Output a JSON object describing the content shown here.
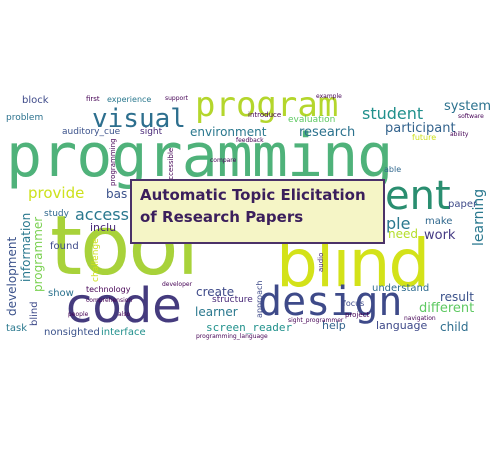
{
  "caption": "Automatic Topic Elicitation of Research Papers",
  "words": {
    "programming": "programming",
    "tool": "tool",
    "blind": "blind",
    "code": "code",
    "design": "design",
    "program": "program",
    "visual": "visual",
    "student": "student",
    "system": "system",
    "participant": "participant",
    "research": "research",
    "environment": "environment",
    "provide": "provide",
    "access": "access",
    "ent": "ent",
    "ple": "ple",
    "work": "work",
    "need": "need",
    "learning": "learning",
    "result": "result",
    "different": "different",
    "child": "child",
    "language": "language",
    "help": "help",
    "screen_reader": "screen_reader",
    "learner": "learner",
    "create": "create",
    "interface": "interface",
    "nonsighted": "nonsighted",
    "task": "task",
    "development": "development",
    "information": "information",
    "programmer": "programmer",
    "block": "block",
    "first": "first",
    "experience": "experience",
    "problem": "problem",
    "auditory_cue": "auditory_cue",
    "sight": "sight",
    "technology": "technology",
    "show": "show",
    "found": "found",
    "study": "study",
    "inclu": "inclu",
    "bas": "bas",
    "structure": "structure",
    "understand": "understand",
    "make": "make",
    "paper": "paper",
    "evaluation": "evaluation",
    "future": "future",
    "focus": "focus",
    "project": "project",
    "able": "able",
    "software": "software",
    "introduce": "introduce",
    "tactile": "tactile",
    "approach": "approach",
    "compare": "compare",
    "support": "support",
    "developer": "developer",
    "challenge": "challenge",
    "audio": "audio",
    "comprehension": "comprehension",
    "sight_programmer": "sight_programmer",
    "programming_language": "programming_language",
    "navigation": "navigation",
    "people": "people",
    "also": "also",
    "ability": "ability",
    "feedback": "feedback",
    "example": "example",
    "accessible": "accessible"
  },
  "colors": {
    "yellow": "#cfe11f",
    "lime": "#8fd444",
    "green": "#4fc16b",
    "teal": "#22a884",
    "sea": "#2a9d8f",
    "steel": "#2f6f8e",
    "blue": "#34618d",
    "indigo": "#3e4a89",
    "navy": "#443a83",
    "purple": "#440154",
    "caption_bg": "#f5f5c6",
    "caption_border": "#4b3268",
    "caption_text": "#3b1f5c"
  }
}
